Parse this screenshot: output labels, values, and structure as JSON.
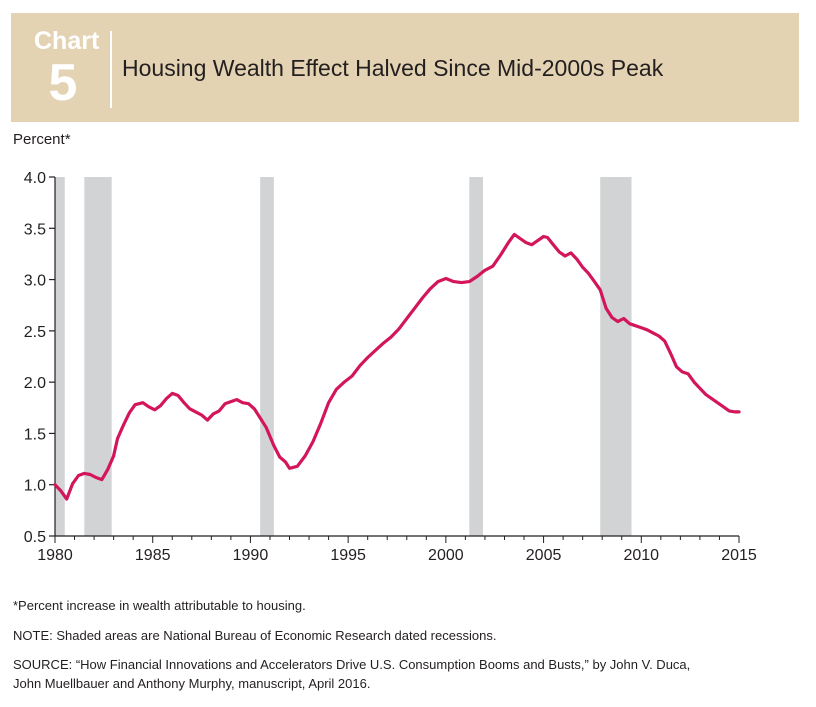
{
  "header": {
    "badge_word": "Chart",
    "badge_number": "5",
    "title": "Housing Wealth Effect Halved Since Mid-2000s Peak"
  },
  "notes": {
    "footnote": "*Percent increase in wealth attributable to housing.",
    "nber": "NOTE: Shaded areas are National Bureau of Economic Research dated recessions.",
    "source_line1": "SOURCE: “How Financial Innovations and Accelerators Drive U.S. Consumption Booms and Busts,” by John V. Duca,",
    "source_line2": "John Muellbauer and Anthony Murphy, manuscript, April 2016."
  },
  "colors": {
    "line": "#d3165b",
    "recession": "#d1d3d4",
    "header": "#e3d3b3"
  },
  "chart_data": {
    "type": "line",
    "ylabel": "Percent*",
    "xlim": [
      1980,
      2015
    ],
    "ylim": [
      0.5,
      4.0
    ],
    "x_ticks": [
      "1980",
      "1985",
      "1990",
      "1995",
      "2000",
      "2005",
      "2010",
      "2015"
    ],
    "y_ticks": [
      "0.5",
      "1.0",
      "1.5",
      "2.0",
      "2.5",
      "3.0",
      "3.5",
      "4.0"
    ],
    "recessions": [
      [
        1980.0,
        1980.5
      ],
      [
        1981.5,
        1982.9
      ],
      [
        1990.5,
        1991.2
      ],
      [
        2001.2,
        2001.9
      ],
      [
        2007.9,
        2009.5
      ]
    ],
    "series": [
      {
        "x": [
          1980.0,
          1980.3,
          1980.6,
          1980.9,
          1981.2,
          1981.5,
          1981.8,
          1982.1,
          1982.4,
          1982.7,
          1983.0,
          1983.2,
          1983.5,
          1983.8,
          1984.1,
          1984.5,
          1984.8,
          1985.1,
          1985.4,
          1985.7,
          1986.0,
          1986.3,
          1986.6,
          1986.9,
          1987.2,
          1987.5,
          1987.8,
          1988.1,
          1988.4,
          1988.7,
          1989.0,
          1989.3,
          1989.6,
          1989.9,
          1990.2,
          1990.5,
          1990.8,
          1991.0,
          1991.2,
          1991.5,
          1991.8,
          1992.0,
          1992.4,
          1992.8,
          1993.2,
          1993.6,
          1994.0,
          1994.4,
          1994.8,
          1995.2,
          1995.6,
          1996.0,
          1996.4,
          1996.8,
          1997.2,
          1997.6,
          1998.0,
          1998.4,
          1998.8,
          1999.2,
          1999.6,
          2000.0,
          2000.4,
          2000.8,
          2001.2,
          2001.6,
          2002.0,
          2002.4,
          2002.8,
          2003.2,
          2003.5,
          2003.8,
          2004.1,
          2004.4,
          2004.7,
          2005.0,
          2005.2,
          2005.5,
          2005.8,
          2006.1,
          2006.4,
          2006.7,
          2007.0,
          2007.3,
          2007.6,
          2007.9,
          2008.2,
          2008.5,
          2008.8,
          2009.1,
          2009.4,
          2009.7,
          2010.0,
          2010.3,
          2010.6,
          2010.9,
          2011.2,
          2011.5,
          2011.8,
          2012.1,
          2012.4,
          2012.7,
          2013.0,
          2013.3,
          2013.6,
          2013.9,
          2014.2,
          2014.5,
          2014.8,
          2015.0
        ],
        "values": [
          1.0,
          0.94,
          0.86,
          1.01,
          1.09,
          1.11,
          1.1,
          1.07,
          1.05,
          1.15,
          1.28,
          1.45,
          1.58,
          1.7,
          1.78,
          1.8,
          1.76,
          1.73,
          1.77,
          1.84,
          1.89,
          1.87,
          1.8,
          1.74,
          1.71,
          1.68,
          1.63,
          1.69,
          1.72,
          1.79,
          1.81,
          1.83,
          1.8,
          1.79,
          1.74,
          1.65,
          1.56,
          1.47,
          1.38,
          1.27,
          1.22,
          1.16,
          1.18,
          1.28,
          1.42,
          1.6,
          1.8,
          1.93,
          2.0,
          2.06,
          2.16,
          2.24,
          2.31,
          2.38,
          2.44,
          2.52,
          2.62,
          2.72,
          2.82,
          2.91,
          2.98,
          3.01,
          2.98,
          2.97,
          2.98,
          3.03,
          3.09,
          3.13,
          3.24,
          3.36,
          3.44,
          3.4,
          3.36,
          3.34,
          3.38,
          3.42,
          3.41,
          3.34,
          3.27,
          3.23,
          3.26,
          3.2,
          3.12,
          3.06,
          2.98,
          2.9,
          2.72,
          2.63,
          2.59,
          2.62,
          2.57,
          2.55,
          2.53,
          2.51,
          2.48,
          2.45,
          2.4,
          2.28,
          2.15,
          2.1,
          2.08,
          2.0,
          1.94,
          1.88,
          1.84,
          1.8,
          1.76,
          1.72,
          1.71,
          1.71
        ]
      }
    ]
  }
}
